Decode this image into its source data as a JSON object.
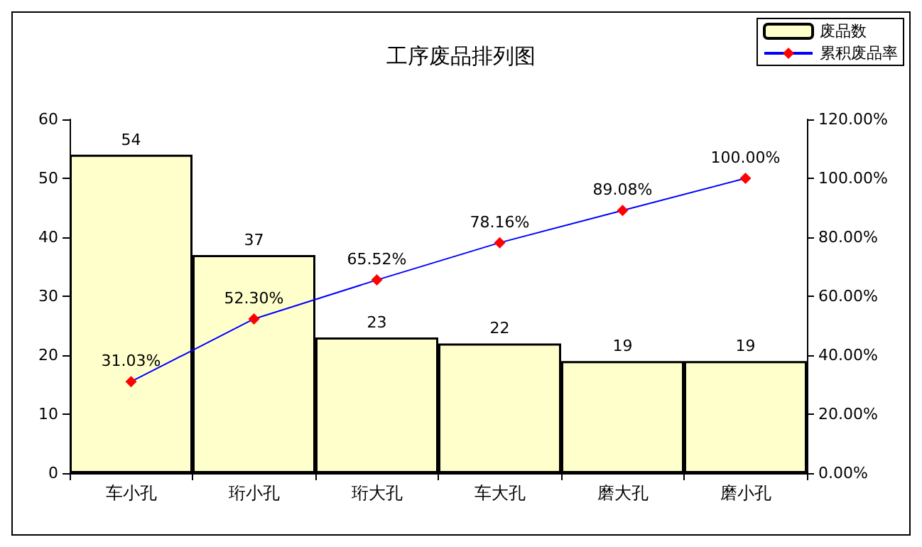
{
  "chart_data": {
    "type": "bar",
    "title": "工序废品排列图",
    "categories": [
      "车小孔",
      "珩小孔",
      "珩大孔",
      "车大孔",
      "磨大孔",
      "磨小孔"
    ],
    "series": [
      {
        "name": "废品数",
        "color": "#ffffcc",
        "values": [
          54,
          37,
          23,
          22,
          19,
          19
        ],
        "value_labels": [
          "54",
          "37",
          "23",
          "22",
          "19",
          "19"
        ]
      },
      {
        "name": "累积废品率",
        "type": "line",
        "axis": "y2",
        "color": "#0000ff",
        "marker": "diamond",
        "values": [
          31.03,
          52.3,
          65.52,
          78.16,
          89.08,
          100.0
        ],
        "value_labels": [
          "31.03%",
          "52.30%",
          "65.52%",
          "78.16%",
          "89.08%",
          "100.00%"
        ]
      }
    ],
    "ylim": [
      0,
      60
    ],
    "yticks": [
      0,
      10,
      20,
      30,
      40,
      50,
      60
    ],
    "y2lim": [
      0,
      120
    ],
    "y2ticks": [
      {
        "value": 0,
        "label": "0.00%"
      },
      {
        "value": 20,
        "label": "20.00%"
      },
      {
        "value": 40,
        "label": "40.00%"
      },
      {
        "value": 60,
        "label": "60.00%"
      },
      {
        "value": 80,
        "label": "80.00%"
      },
      {
        "value": 100,
        "label": "100.00%"
      },
      {
        "value": 120,
        "label": "120.00%"
      }
    ],
    "legend": "top right",
    "grid": false
  }
}
